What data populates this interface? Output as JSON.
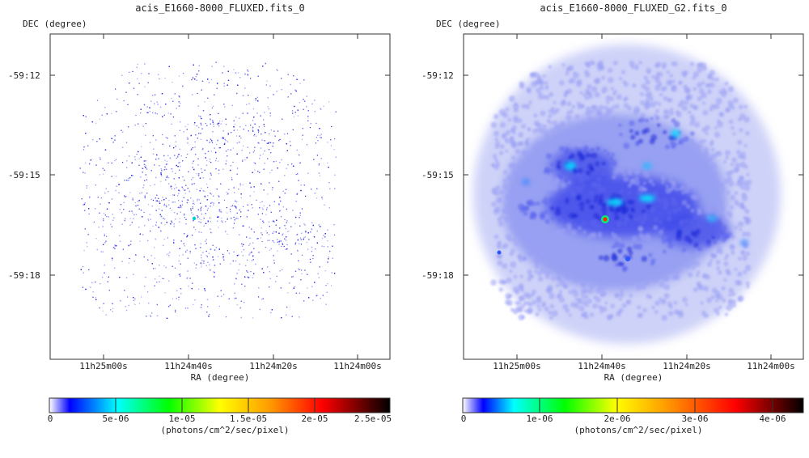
{
  "panels": [
    {
      "title": "acis_E1660-8000_FLUXED.fits_0",
      "dec_axis_label": "DEC (degree)",
      "ra_axis_label": "RA (degree)",
      "dec_ticks": [
        "-59:12",
        "-59:15",
        "-59:18"
      ],
      "ra_ticks": [
        "11h25m00s",
        "11h24m40s",
        "11h24m20s",
        "11h24m00s"
      ],
      "colorbar": {
        "ticks": [
          "0",
          "5e-06",
          "1e-05",
          "1.5e-05",
          "2e-05",
          "2.5e-05"
        ],
        "units": "(photons/cm^2/sec/pixel)"
      }
    },
    {
      "title": "acis_E1660-8000_FLUXED_G2.fits_0",
      "dec_axis_label": "DEC (degree)",
      "ra_axis_label": "RA (degree)",
      "dec_ticks": [
        "-59:12",
        "-59:15",
        "-59:18"
      ],
      "ra_ticks": [
        "11h25m00s",
        "11h24m40s",
        "11h24m20s",
        "11h24m00s"
      ],
      "colorbar": {
        "ticks": [
          "0",
          "1e-06",
          "2e-06",
          "3e-06",
          "4e-06"
        ],
        "units": "(photons/cm^2/sec/pixel)"
      }
    }
  ],
  "chart_data": [
    {
      "type": "heatmap",
      "title": "acis_E1660-8000_FLUXED.fits_0",
      "xlabel": "RA (degree)",
      "ylabel": "DEC (degree)",
      "x_ticks": [
        "11h25m00s",
        "11h24m40s",
        "11h24m20s",
        "11h24m00s"
      ],
      "y_ticks": [
        "-59:12",
        "-59:15",
        "-59:18"
      ],
      "colorbar_range": [
        0,
        2.5e-05
      ],
      "colorbar_units": "(photons/cm^2/sec/pixel)",
      "colormap": [
        "#ffffff",
        "#0000ff",
        "#00ffff",
        "#00ff00",
        "#ffff00",
        "#ff8000",
        "#ff0000",
        "#000000"
      ]
    },
    {
      "type": "heatmap",
      "title": "acis_E1660-8000_FLUXED_G2.fits_0",
      "xlabel": "RA (degree)",
      "ylabel": "DEC (degree)",
      "x_ticks": [
        "11h25m00s",
        "11h24m40s",
        "11h24m20s",
        "11h24m00s"
      ],
      "y_ticks": [
        "-59:12",
        "-59:15",
        "-59:18"
      ],
      "colorbar_range": [
        0,
        4.4e-06
      ],
      "colorbar_units": "(photons/cm^2/sec/pixel)",
      "colormap": [
        "#ffffff",
        "#0000ff",
        "#00ffff",
        "#00ff00",
        "#ffff00",
        "#ff8000",
        "#ff0000",
        "#000000"
      ]
    }
  ]
}
